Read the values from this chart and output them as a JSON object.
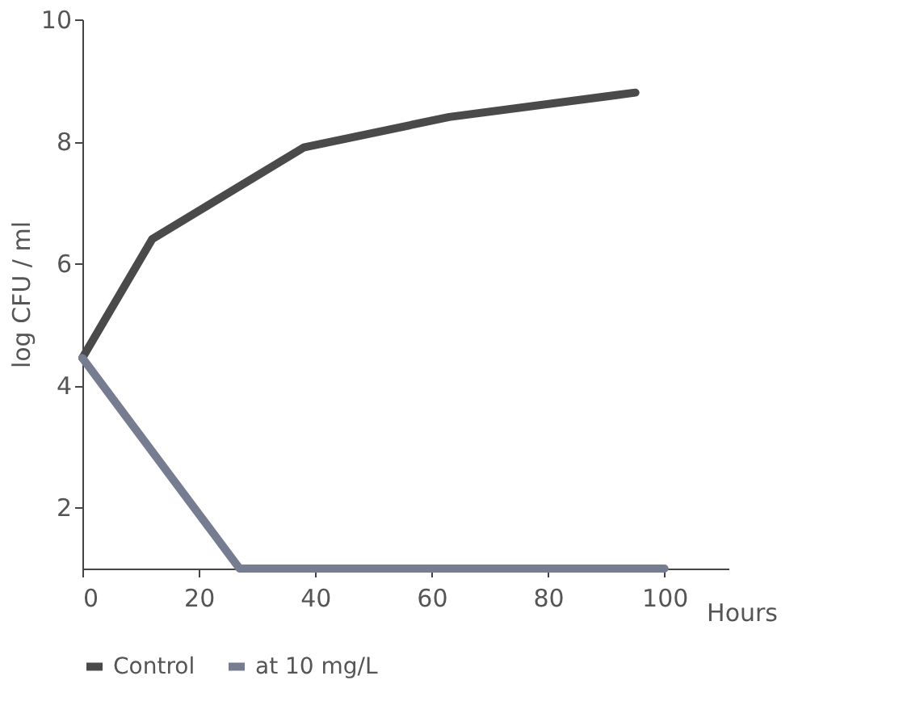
{
  "chart_data": {
    "type": "line",
    "xlabel": "Hours",
    "ylabel": "log CFU / ml",
    "xlim": [
      0,
      111
    ],
    "xticks": [
      0,
      20,
      40,
      60,
      80,
      100
    ],
    "ylim": [
      1,
      10
    ],
    "yticks": [
      2,
      4,
      6,
      8,
      10
    ],
    "series": [
      {
        "name": "Control",
        "color": "#4a4a4a",
        "x": [
          0,
          12,
          38,
          63,
          95
        ],
        "values": [
          4.45,
          6.4,
          7.9,
          8.4,
          8.8
        ]
      },
      {
        "name": "at 10 mg/L",
        "color": "#767d91",
        "x": [
          0,
          27,
          100
        ],
        "values": [
          4.45,
          1,
          1
        ]
      }
    ],
    "grid": false,
    "legend": "bottom",
    "marker": "none",
    "line_style": "solid"
  }
}
